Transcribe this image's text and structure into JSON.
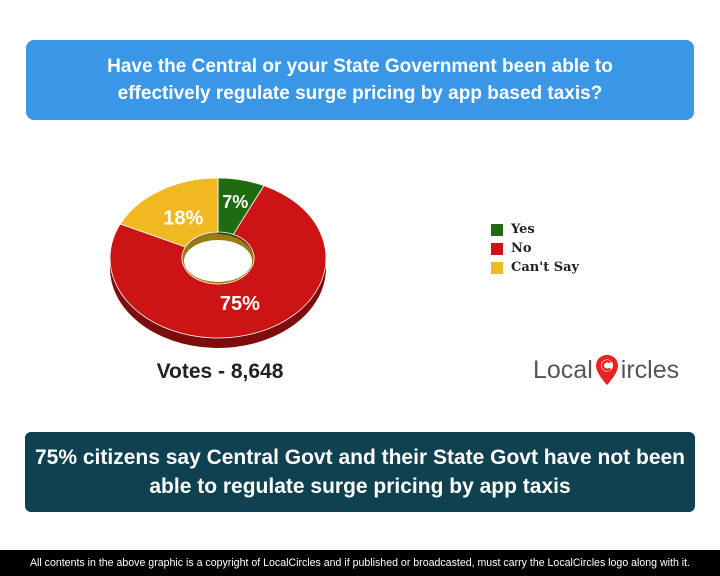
{
  "question": "Have the Central or your State Government been able to effectively regulate surge pricing by app based taxis?",
  "chart_data": {
    "type": "pie",
    "categories": [
      "Yes",
      "No",
      "Can't Say"
    ],
    "values": [
      7,
      75,
      18
    ],
    "labels": [
      "7%",
      "75%",
      "18%"
    ],
    "colors": [
      "#1e6b10",
      "#cc1414",
      "#f0b922"
    ],
    "donut": true,
    "legend_position": "right"
  },
  "votes": "Votes - 8,648",
  "logo": {
    "left": "Local",
    "right": "ircles",
    "icon": "map-pin-c-icon"
  },
  "conclusion": "75% citizens say Central Govt and their State Govt have not been able to regulate surge pricing by app taxis",
  "footer": "All contents in the above graphic is a copyright of LocalCircles and if published or broadcasted, must carry the LocalCircles logo along with it."
}
